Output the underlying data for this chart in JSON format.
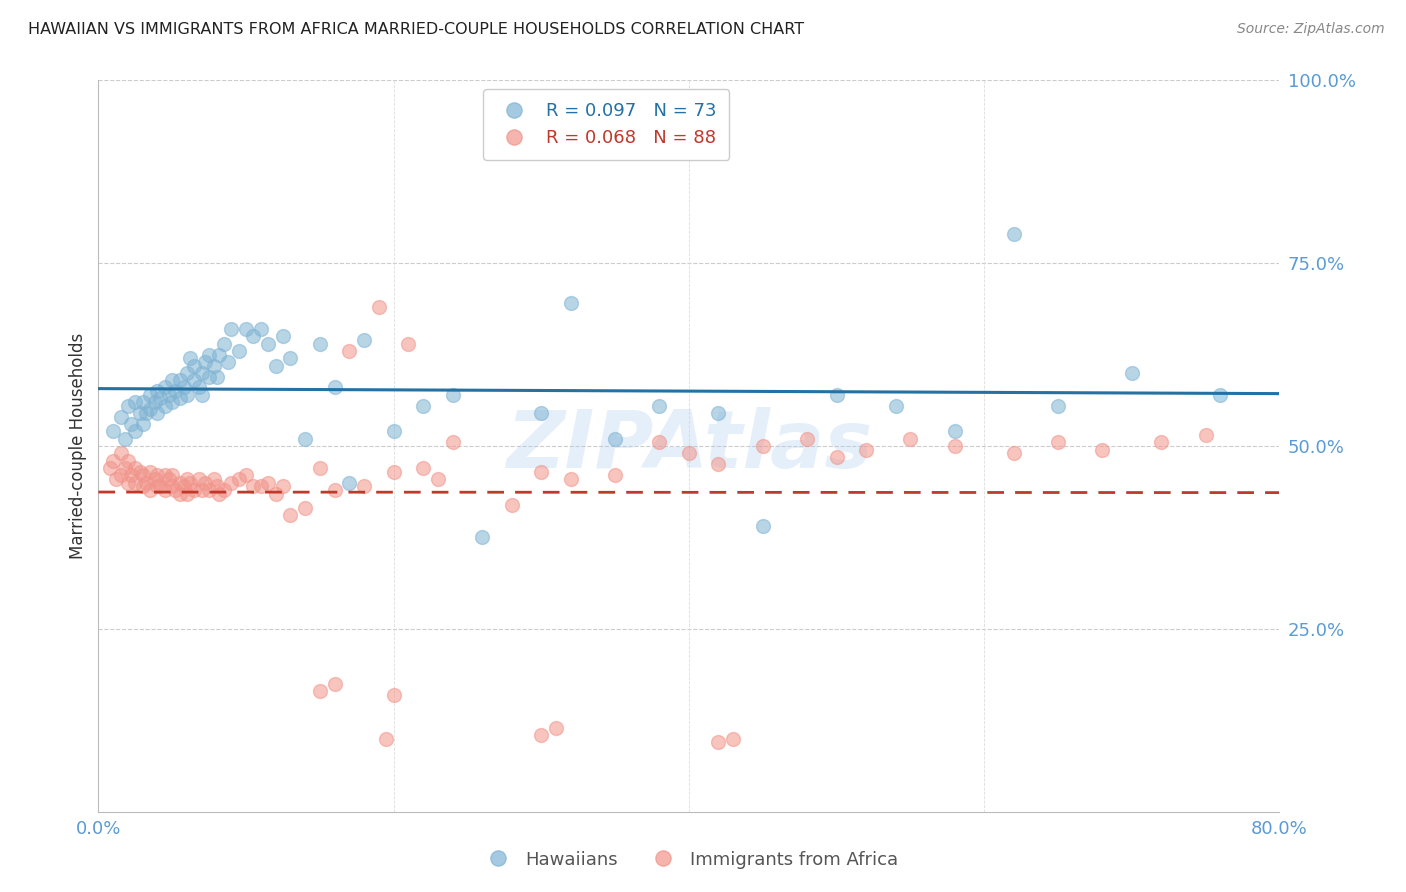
{
  "title": "HAWAIIAN VS IMMIGRANTS FROM AFRICA MARRIED-COUPLE HOUSEHOLDS CORRELATION CHART",
  "source": "Source: ZipAtlas.com",
  "watermark": "ZIPAtlas",
  "ylabel": "Married-couple Households",
  "xlim": [
    0.0,
    0.8
  ],
  "ylim": [
    0.0,
    1.0
  ],
  "blue_color": "#7FB3D3",
  "pink_color": "#F1948A",
  "line_blue": "#2471A3",
  "line_pink": "#C0392B",
  "legend_blue_R": "R = 0.097",
  "legend_blue_N": "N = 73",
  "legend_pink_R": "R = 0.068",
  "legend_pink_N": "N = 88",
  "blue_x": [
    0.01,
    0.015,
    0.018,
    0.02,
    0.022,
    0.025,
    0.025,
    0.028,
    0.03,
    0.03,
    0.032,
    0.035,
    0.035,
    0.038,
    0.04,
    0.04,
    0.042,
    0.045,
    0.045,
    0.048,
    0.05,
    0.05,
    0.052,
    0.055,
    0.055,
    0.058,
    0.06,
    0.06,
    0.062,
    0.065,
    0.065,
    0.068,
    0.07,
    0.07,
    0.072,
    0.075,
    0.075,
    0.078,
    0.08,
    0.082,
    0.085,
    0.088,
    0.09,
    0.095,
    0.1,
    0.105,
    0.11,
    0.115,
    0.12,
    0.125,
    0.13,
    0.14,
    0.15,
    0.16,
    0.17,
    0.18,
    0.2,
    0.22,
    0.24,
    0.26,
    0.3,
    0.32,
    0.35,
    0.38,
    0.42,
    0.45,
    0.5,
    0.54,
    0.58,
    0.62,
    0.65,
    0.7,
    0.76
  ],
  "blue_y": [
    0.52,
    0.54,
    0.51,
    0.555,
    0.53,
    0.56,
    0.52,
    0.545,
    0.56,
    0.53,
    0.545,
    0.57,
    0.55,
    0.56,
    0.575,
    0.545,
    0.565,
    0.58,
    0.555,
    0.57,
    0.59,
    0.56,
    0.575,
    0.59,
    0.565,
    0.58,
    0.6,
    0.57,
    0.62,
    0.59,
    0.61,
    0.58,
    0.6,
    0.57,
    0.615,
    0.595,
    0.625,
    0.61,
    0.595,
    0.625,
    0.64,
    0.615,
    0.66,
    0.63,
    0.66,
    0.65,
    0.66,
    0.64,
    0.61,
    0.65,
    0.62,
    0.51,
    0.64,
    0.58,
    0.45,
    0.645,
    0.52,
    0.555,
    0.57,
    0.375,
    0.545,
    0.695,
    0.51,
    0.555,
    0.545,
    0.39,
    0.57,
    0.555,
    0.52,
    0.79,
    0.555,
    0.6,
    0.57
  ],
  "pink_x": [
    0.008,
    0.01,
    0.012,
    0.015,
    0.015,
    0.018,
    0.02,
    0.02,
    0.022,
    0.025,
    0.025,
    0.028,
    0.03,
    0.03,
    0.032,
    0.035,
    0.035,
    0.038,
    0.04,
    0.04,
    0.042,
    0.045,
    0.045,
    0.048,
    0.05,
    0.05,
    0.052,
    0.055,
    0.055,
    0.058,
    0.06,
    0.06,
    0.062,
    0.065,
    0.068,
    0.07,
    0.072,
    0.075,
    0.078,
    0.08,
    0.082,
    0.085,
    0.09,
    0.095,
    0.1,
    0.105,
    0.11,
    0.115,
    0.12,
    0.125,
    0.13,
    0.14,
    0.15,
    0.16,
    0.17,
    0.18,
    0.19,
    0.2,
    0.21,
    0.22,
    0.23,
    0.24,
    0.28,
    0.3,
    0.32,
    0.35,
    0.38,
    0.4,
    0.42,
    0.45,
    0.48,
    0.5,
    0.52,
    0.55,
    0.58,
    0.62,
    0.65,
    0.68,
    0.72,
    0.75,
    0.3,
    0.31,
    0.195,
    0.2,
    0.42,
    0.43,
    0.15,
    0.16
  ],
  "pink_y": [
    0.47,
    0.48,
    0.455,
    0.49,
    0.46,
    0.47,
    0.45,
    0.48,
    0.46,
    0.47,
    0.45,
    0.465,
    0.445,
    0.46,
    0.45,
    0.465,
    0.44,
    0.455,
    0.445,
    0.46,
    0.445,
    0.46,
    0.44,
    0.455,
    0.445,
    0.46,
    0.44,
    0.45,
    0.435,
    0.445,
    0.455,
    0.435,
    0.45,
    0.44,
    0.455,
    0.44,
    0.45,
    0.44,
    0.455,
    0.445,
    0.435,
    0.44,
    0.45,
    0.455,
    0.46,
    0.445,
    0.445,
    0.45,
    0.435,
    0.445,
    0.405,
    0.415,
    0.47,
    0.44,
    0.63,
    0.445,
    0.69,
    0.465,
    0.64,
    0.47,
    0.455,
    0.505,
    0.42,
    0.465,
    0.455,
    0.46,
    0.505,
    0.49,
    0.475,
    0.5,
    0.51,
    0.485,
    0.495,
    0.51,
    0.5,
    0.49,
    0.505,
    0.495,
    0.505,
    0.515,
    0.105,
    0.115,
    0.1,
    0.16,
    0.095,
    0.1,
    0.165,
    0.175
  ]
}
